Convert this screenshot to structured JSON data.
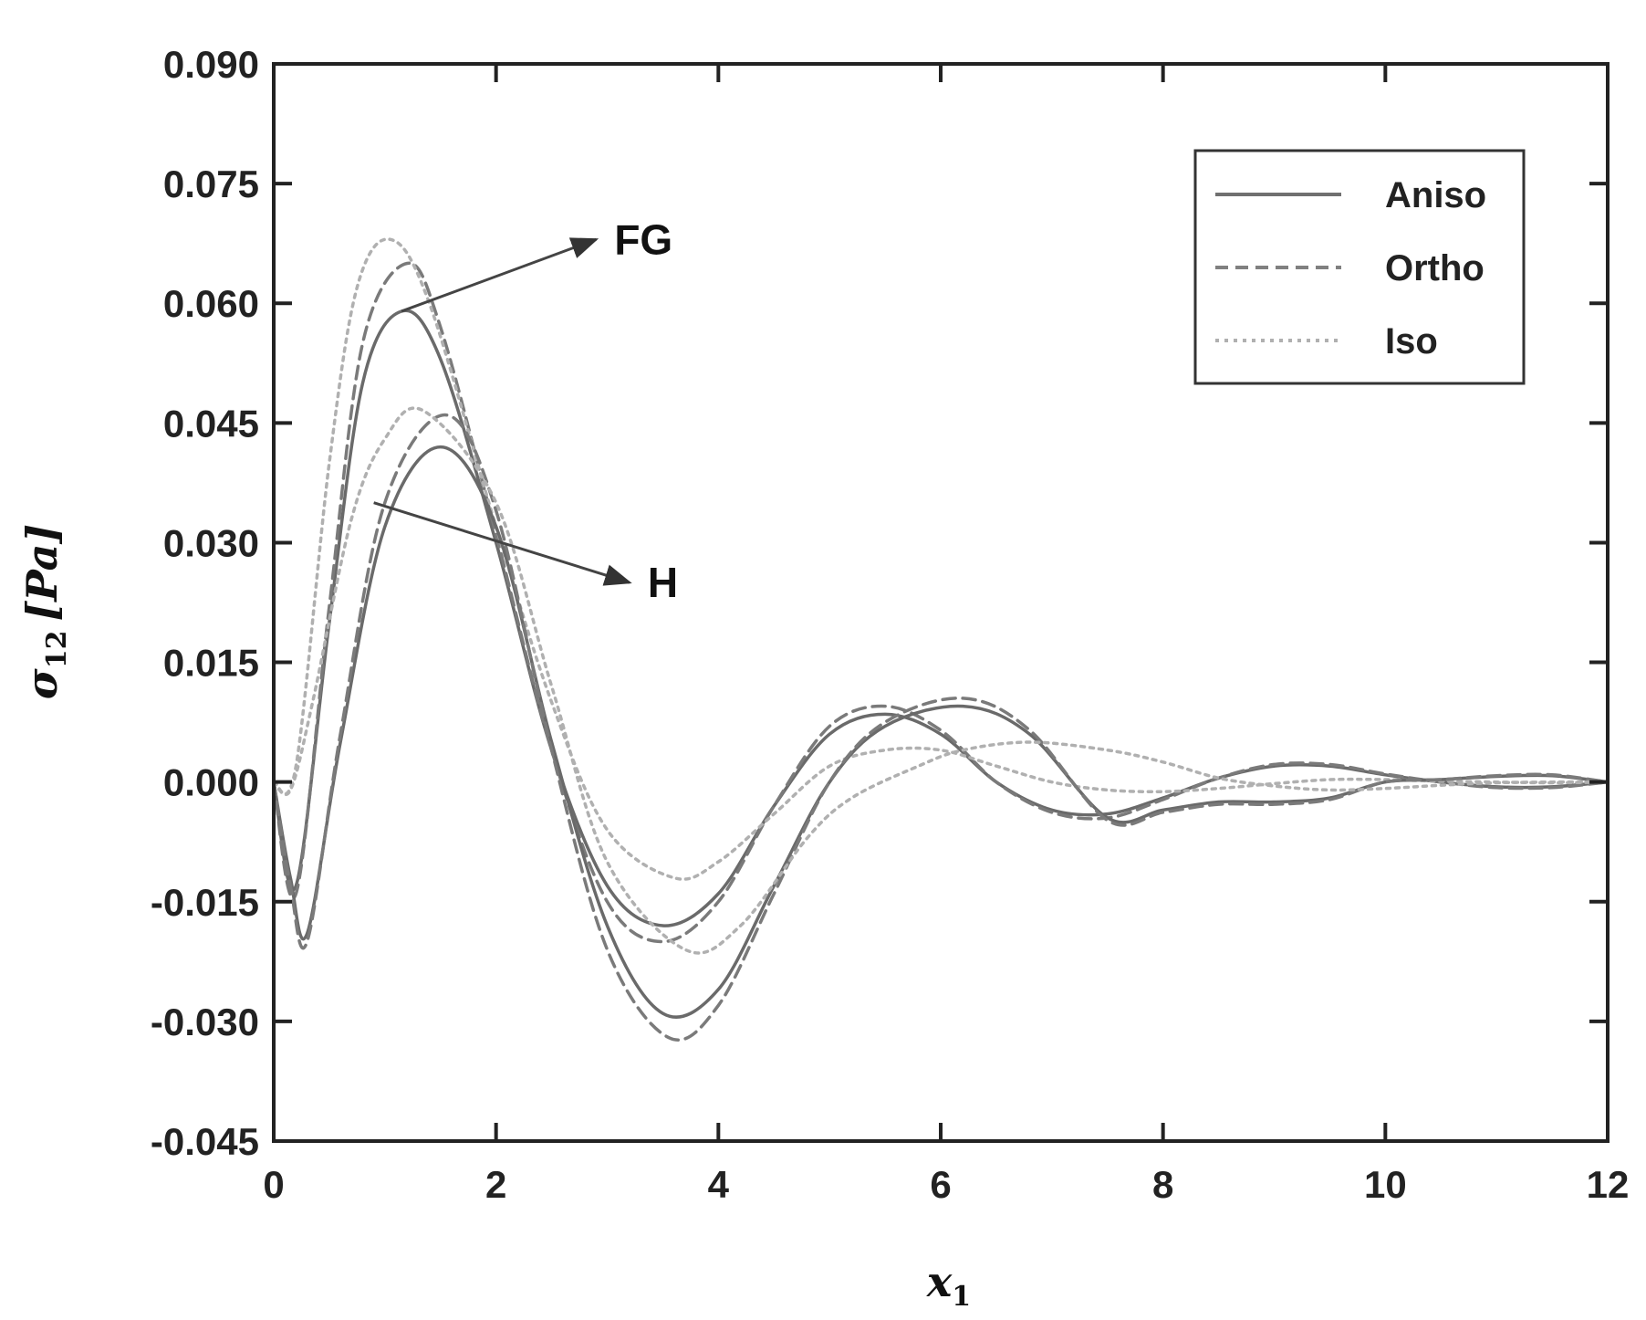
{
  "chart_data": {
    "type": "line",
    "xlabel": "x",
    "xlabel_sub": "1",
    "ylabel": "σ",
    "ylabel_sub": "12",
    "ylabel_unit": "[Pa]",
    "xlim": [
      0,
      12
    ],
    "ylim": [
      -0.045,
      0.09
    ],
    "xticks": [
      0,
      2,
      4,
      6,
      8,
      10,
      12
    ],
    "xtick_labels": [
      "0",
      "2",
      "4",
      "6",
      "8",
      "10",
      "12"
    ],
    "yticks": [
      -0.045,
      -0.03,
      -0.015,
      0.0,
      0.015,
      0.03,
      0.045,
      0.06,
      0.075,
      0.09
    ],
    "ytick_labels": [
      "-0.045",
      "-0.030",
      "-0.015",
      "0.000",
      "0.015",
      "0.030",
      "0.045",
      "0.060",
      "0.075",
      "0.090"
    ],
    "grid": false,
    "legend_position": "top-right",
    "legend": [
      {
        "label": "Aniso",
        "style": "solid",
        "color": "#707070"
      },
      {
        "label": "Ortho",
        "style": "dashed",
        "color": "#808080"
      },
      {
        "label": "Iso",
        "style": "dotted",
        "color": "#b0b0b0"
      }
    ],
    "annotations": [
      {
        "text": "FG",
        "from": [
          1.15,
          0.059
        ],
        "to": [
          2.9,
          0.068
        ]
      },
      {
        "text": "H",
        "from": [
          0.9,
          0.035
        ],
        "to": [
          3.2,
          0.025
        ]
      }
    ],
    "series": [
      {
        "group": "FG",
        "style": "solid",
        "color": "#6a6a6a",
        "x": [
          0,
          0.2,
          0.5,
          0.8,
          1.15,
          1.5,
          2.0,
          2.5,
          3.0,
          3.5,
          4.0,
          4.5,
          5.0,
          5.5,
          6.0,
          6.5,
          7.0,
          7.5,
          8.0,
          8.5,
          9.0,
          9.5,
          10.0,
          10.5,
          11.0,
          11.5,
          12.0
        ],
        "y": [
          0,
          -0.013,
          0.02,
          0.05,
          0.059,
          0.053,
          0.03,
          0.004,
          -0.013,
          -0.018,
          -0.014,
          -0.003,
          0.006,
          0.0085,
          0.006,
          0.0,
          -0.0035,
          -0.004,
          -0.002,
          0.0005,
          0.002,
          0.002,
          0.0009,
          0,
          -0.0006,
          -0.0006,
          0
        ]
      },
      {
        "group": "FG",
        "style": "dashed",
        "color": "#7a7a7a",
        "x": [
          0,
          0.2,
          0.5,
          0.8,
          1.2,
          1.5,
          2.0,
          2.5,
          3.0,
          3.5,
          4.0,
          4.5,
          5.0,
          5.5,
          6.0,
          6.5,
          7.0,
          7.5,
          8.0,
          8.5,
          9.0,
          9.5,
          10.0,
          10.5,
          11.0,
          11.5,
          12.0
        ],
        "y": [
          0,
          -0.014,
          0.022,
          0.055,
          0.065,
          0.057,
          0.031,
          0.004,
          -0.015,
          -0.02,
          -0.015,
          -0.003,
          0.007,
          0.0095,
          0.0065,
          0.0,
          -0.0038,
          -0.0045,
          -0.0022,
          0.0005,
          0.0022,
          0.0022,
          0.001,
          0,
          -0.0007,
          -0.0007,
          0
        ]
      },
      {
        "group": "FG",
        "style": "dotted",
        "color": "#b0b0b0",
        "x": [
          0,
          0.2,
          0.5,
          0.75,
          1.05,
          1.4,
          2.0,
          2.5,
          3.0,
          3.6,
          4.0,
          4.5,
          5.0,
          5.5,
          6.0,
          6.5,
          7.0,
          7.5,
          8.0,
          8.5,
          9.0,
          9.5,
          10.0,
          10.5,
          11.0,
          11.5,
          12.0
        ],
        "y": [
          0,
          0.002,
          0.04,
          0.062,
          0.068,
          0.06,
          0.032,
          0.01,
          -0.006,
          -0.012,
          -0.01,
          -0.004,
          0.002,
          0.004,
          0.004,
          0.002,
          0.0,
          -0.001,
          -0.0012,
          -0.0008,
          -0.0002,
          0.0003,
          0.0003,
          0.0001,
          0,
          -0.0001,
          0
        ]
      },
      {
        "group": "H",
        "style": "solid",
        "color": "#6a6a6a",
        "x": [
          0,
          0.15,
          0.3,
          0.6,
          1.0,
          1.5,
          2.0,
          2.5,
          3.0,
          3.5,
          4.0,
          4.5,
          5.0,
          5.5,
          6.2,
          6.8,
          7.5,
          8.0,
          8.5,
          9.0,
          9.5,
          10.0,
          10.5,
          11.0,
          11.5,
          12.0
        ],
        "y": [
          0,
          -0.012,
          -0.019,
          0.005,
          0.032,
          0.042,
          0.032,
          0.005,
          -0.018,
          -0.029,
          -0.026,
          -0.013,
          0.0,
          0.007,
          0.0095,
          0.006,
          -0.0045,
          -0.0035,
          -0.0025,
          -0.0025,
          -0.002,
          0.0,
          0.0003,
          0.0007,
          0.0008,
          0
        ]
      },
      {
        "group": "H",
        "style": "dashed",
        "color": "#7a7a7a",
        "x": [
          0,
          0.15,
          0.3,
          0.6,
          1.0,
          1.55,
          2.0,
          2.5,
          3.0,
          3.55,
          4.0,
          4.5,
          5.0,
          5.5,
          6.2,
          6.8,
          7.5,
          8.0,
          8.5,
          9.0,
          9.5,
          10.0,
          10.5,
          11.0,
          11.5,
          12.0
        ],
        "y": [
          0,
          -0.013,
          -0.02,
          0.006,
          0.035,
          0.046,
          0.034,
          0.004,
          -0.021,
          -0.032,
          -0.028,
          -0.014,
          0.0,
          0.0075,
          0.0105,
          0.0065,
          -0.0048,
          -0.0038,
          -0.0028,
          -0.0028,
          -0.0022,
          0.0,
          0.0003,
          0.0008,
          0.0009,
          0
        ]
      },
      {
        "group": "H",
        "style": "dotted",
        "color": "#b0b0b0",
        "x": [
          0,
          0.15,
          0.35,
          0.7,
          1.0,
          1.35,
          2.0,
          2.5,
          3.0,
          3.7,
          4.2,
          4.8,
          5.2,
          5.8,
          6.2,
          6.8,
          7.5,
          8.0,
          8.5,
          9.0,
          9.5,
          10.0,
          10.5,
          11.0,
          11.5,
          12.0
        ],
        "y": [
          0,
          -0.001,
          0.01,
          0.033,
          0.043,
          0.0465,
          0.035,
          0.012,
          -0.01,
          -0.021,
          -0.018,
          -0.007,
          -0.002,
          0.002,
          0.004,
          0.005,
          0.004,
          0.0025,
          0.0005,
          -0.0005,
          -0.001,
          -0.0008,
          -0.0004,
          -0.0001,
          0,
          0
        ]
      }
    ]
  }
}
